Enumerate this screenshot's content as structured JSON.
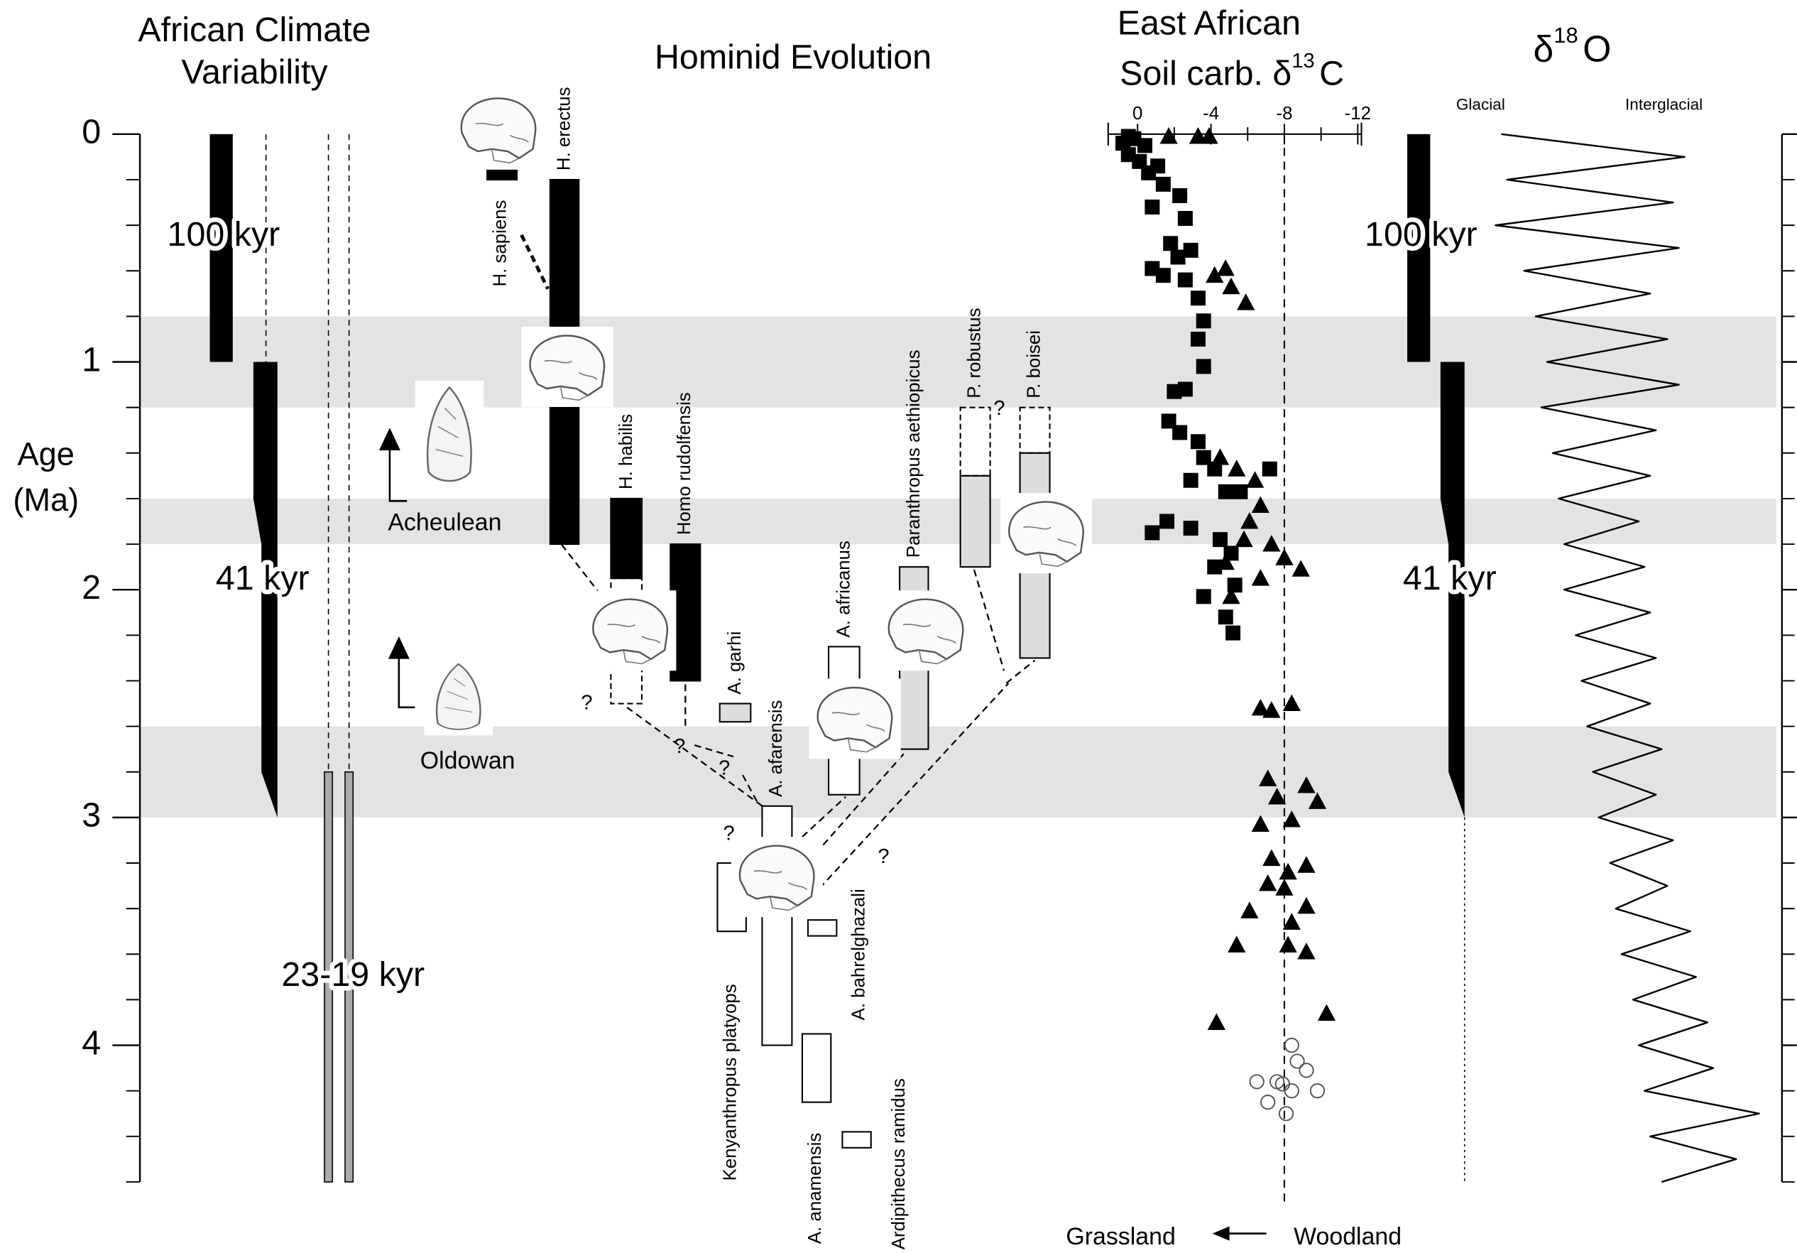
{
  "chart_data": {
    "type": "timeline",
    "y_label_lines": [
      "Age",
      "(Ma)"
    ],
    "ylim": [
      0,
      4.6
    ],
    "yticks": [
      0,
      1,
      2,
      3,
      4
    ],
    "yticks_minor": [
      0.2,
      0.4,
      0.6,
      0.8,
      1.2,
      1.4,
      1.6,
      1.8,
      2.2,
      2.4,
      2.6,
      2.8,
      3.2,
      3.4,
      3.6,
      3.8,
      4.2,
      4.4,
      4.6
    ],
    "bands": [
      [
        0.8,
        1.2
      ],
      [
        1.6,
        1.8
      ],
      [
        2.6,
        3.0
      ]
    ],
    "band_color": "#e3e3e3",
    "climate": {
      "title_lines": [
        "African Climate",
        "Variability"
      ],
      "cycles": [
        {
          "label": "100 kyr",
          "start": 0,
          "end": 1
        },
        {
          "label": "41 kyr",
          "start": 1,
          "end": 3
        },
        {
          "label": "23-19 kyr",
          "start": 2.8,
          "end": 4.6
        }
      ]
    },
    "hominid": {
      "title": "Hominid Evolution",
      "species": [
        {
          "name": "H. sapiens",
          "range": [
            0.15,
            0.2
          ],
          "fill": "#000000"
        },
        {
          "name": "H. erectus",
          "range": [
            0.2,
            1.8
          ],
          "fill": "#000000"
        },
        {
          "name": "H. habilis",
          "range": [
            1.6,
            1.95
          ],
          "dashed": [
            1.95,
            2.5
          ],
          "fill": "#000000"
        },
        {
          "name": "Homo rudolfensis",
          "range": [
            1.8,
            2.4
          ],
          "fill": "#000000"
        },
        {
          "name": "A. garhi",
          "range": [
            2.5,
            2.58
          ],
          "fill": "#dddddd"
        },
        {
          "name": "A. afarensis",
          "range": [
            2.95,
            4.0
          ],
          "fill": "#ffffff"
        },
        {
          "name": "A. africanus",
          "range": [
            2.25,
            2.9
          ],
          "fill": "#ffffff"
        },
        {
          "name": "Paranthropus aethiopicus",
          "range": [
            1.9,
            2.7
          ],
          "fill": "#dddddd"
        },
        {
          "name": "P. robustus",
          "range": [
            1.5,
            1.9
          ],
          "dashed": [
            1.2,
            1.5
          ],
          "fill": "#dddddd"
        },
        {
          "name": "P. boisei",
          "range": [
            1.4,
            2.3
          ],
          "dashed": [
            1.2,
            1.4
          ],
          "fill": "#dddddd"
        },
        {
          "name": "Kenyanthropus platyops",
          "range": [
            3.2,
            3.5
          ],
          "fill": "#ffffff"
        },
        {
          "name": "A. bahrelghazali",
          "range": [
            3.45,
            3.52
          ],
          "fill": "#ffffff"
        },
        {
          "name": "A. anamensis",
          "range": [
            3.95,
            4.25
          ],
          "fill": "#ffffff"
        },
        {
          "name": "Ardipithecus ramidus",
          "range": [
            4.38,
            4.45
          ],
          "fill": "#ffffff"
        }
      ],
      "tools": [
        "Acheulean",
        "Oldowan"
      ],
      "question_marks": [
        "?",
        "?",
        "?",
        "?",
        "?",
        "?"
      ]
    },
    "soil": {
      "title": "East African",
      "subtitle": {
        "text": "Soil carb. δ",
        "sup": "13",
        "tail": "C"
      },
      "xlim": [
        1.6,
        -12.2
      ],
      "xticks": [
        0,
        -4,
        -8,
        -12
      ],
      "xticks_minor": [
        -2,
        -6,
        -10
      ],
      "threshold": -8,
      "xlabel_left": "Grassland",
      "xlabel_right": "Woodland",
      "series": [
        {
          "marker": "square",
          "color": "#000000",
          "filled": true,
          "x": [
            0.5,
            0.2,
            0.8,
            -0.4,
            0.5,
            -0.1,
            -0.6,
            -1.1,
            -1.4,
            -2.3,
            -0.8,
            -2.6,
            -1.8,
            -2.2,
            -2.9,
            -0.8,
            -1.4,
            -2.6,
            -3.3,
            -3.6,
            -3.3,
            -3.6,
            -2.6,
            -2.0,
            -1.7,
            -2.3,
            -3.3,
            -3.6,
            -4.2,
            -2.9,
            -4.8,
            -7.2,
            -1.6,
            -2.9,
            -4.5,
            -0.8,
            -5.1,
            -4.2,
            -5.3,
            -3.6,
            -4.8,
            -5.2,
            -5.6
          ],
          "y": [
            0.01,
            0.02,
            0.04,
            0.05,
            0.09,
            0.12,
            0.17,
            0.14,
            0.22,
            0.27,
            0.32,
            0.37,
            0.48,
            0.54,
            0.51,
            0.59,
            0.62,
            0.64,
            0.72,
            0.82,
            0.9,
            1.02,
            1.12,
            1.13,
            1.26,
            1.31,
            1.35,
            1.42,
            1.47,
            1.52,
            1.57,
            1.47,
            1.7,
            1.73,
            1.78,
            1.75,
            1.84,
            1.9,
            1.98,
            2.03,
            2.12,
            2.19,
            1.57
          ]
        },
        {
          "marker": "triangle",
          "color": "#000000",
          "filled": true,
          "x": [
            -1.7,
            -3.3,
            -3.9,
            -4.2,
            -4.8,
            -5.9,
            -5.1,
            -4.5,
            -5.4,
            -6.4,
            -6.7,
            -6.1,
            -5.8,
            -7.3,
            -8.0,
            -8.9,
            -4.8,
            -6.7,
            -5.1,
            -6.7,
            -7.3,
            -8.4,
            -7.1,
            -9.2,
            -9.8,
            -7.6,
            -6.7,
            -8.4,
            -7.3,
            -8.2,
            -9.2,
            -7.1,
            -8.0,
            -6.1,
            -9.2,
            -8.4,
            -5.4,
            -8.2,
            -9.2,
            -10.3,
            -4.3
          ],
          "y": [
            0.01,
            0.01,
            0.01,
            0.62,
            0.59,
            0.74,
            0.67,
            1.42,
            1.47,
            1.52,
            1.63,
            1.7,
            1.78,
            1.8,
            1.86,
            1.91,
            1.88,
            1.95,
            2.03,
            2.52,
            2.53,
            2.5,
            2.83,
            2.86,
            2.93,
            2.91,
            3.03,
            3.01,
            3.18,
            3.24,
            3.21,
            3.29,
            3.31,
            3.41,
            3.39,
            3.46,
            3.56,
            3.56,
            3.59,
            3.86,
            3.9
          ]
        },
        {
          "marker": "circle",
          "color": "#555555",
          "filled": false,
          "x": [
            -8.4,
            -8.7,
            -9.2,
            -6.5,
            -7.6,
            -7.9,
            -9.8,
            -8.4,
            -7.1,
            -8.1
          ],
          "y": [
            4.0,
            4.07,
            4.11,
            4.16,
            4.16,
            4.17,
            4.2,
            4.2,
            4.25,
            4.3
          ]
        }
      ]
    },
    "d18o": {
      "title": {
        "text": "δ",
        "sup": "18",
        "tail": "O"
      },
      "label_left": "Glacial",
      "label_right": "Interglacial",
      "xlim": [
        0,
        1
      ],
      "color": "#000000",
      "age": [
        0,
        0.1,
        0.2,
        0.3,
        0.4,
        0.5,
        0.6,
        0.7,
        0.8,
        0.9,
        1.0,
        1.1,
        1.2,
        1.3,
        1.4,
        1.5,
        1.6,
        1.7,
        1.8,
        1.9,
        2.0,
        2.1,
        2.2,
        2.3,
        2.4,
        2.5,
        2.6,
        2.7,
        2.8,
        2.9,
        3.0,
        3.1,
        3.2,
        3.3,
        3.4,
        3.5,
        3.6,
        3.7,
        3.8,
        3.9,
        4.0,
        4.1,
        4.2,
        4.3,
        4.4,
        4.5,
        4.6
      ],
      "values": [
        0.08,
        0.72,
        0.1,
        0.68,
        0.06,
        0.7,
        0.16,
        0.6,
        0.2,
        0.66,
        0.24,
        0.7,
        0.22,
        0.62,
        0.26,
        0.6,
        0.28,
        0.56,
        0.3,
        0.58,
        0.3,
        0.6,
        0.34,
        0.62,
        0.36,
        0.6,
        0.38,
        0.64,
        0.4,
        0.62,
        0.42,
        0.68,
        0.46,
        0.66,
        0.48,
        0.74,
        0.5,
        0.76,
        0.54,
        0.8,
        0.56,
        0.82,
        0.58,
        0.98,
        0.6,
        0.9,
        0.64
      ],
      "cycles": [
        {
          "label": "100 kyr",
          "start": 0,
          "end": 1
        },
        {
          "label": "41 kyr",
          "start": 1,
          "end": 3
        }
      ]
    }
  }
}
